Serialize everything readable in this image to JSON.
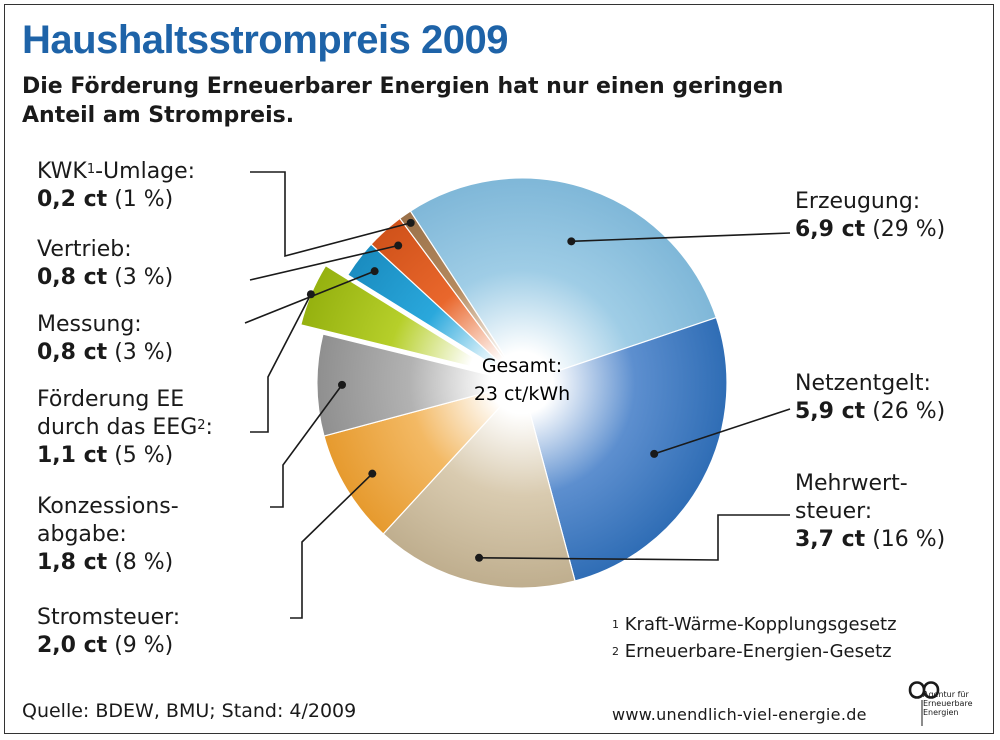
{
  "chart_data": {
    "type": "pie",
    "title": "Haushaltsstrompreis 2009",
    "subtitle": "Die Förderung Erneuerbarer Energien hat nur einen geringen Anteil am Strompreis.",
    "center_label": [
      "Gesamt:",
      "23 ct/kWh"
    ],
    "unit": "ct",
    "total": 23,
    "slices": [
      {
        "key": "erzeugung",
        "name": "Erzeugung:",
        "value_label": "6,9 ct",
        "pct_label": "(29 %)",
        "value": 6.9,
        "pct": 29,
        "color": "#9fcde6",
        "color_dark": "#7fb7d8"
      },
      {
        "key": "netz",
        "name": "Netzentgelt:",
        "value_label": "5,9 ct",
        "pct_label": "(26 %)",
        "value": 5.9,
        "pct": 26,
        "color": "#5d8fcf",
        "color_dark": "#2f6db5"
      },
      {
        "key": "mwst",
        "name": "Mehrwert-steuer:",
        "value_label": "3,7 ct",
        "pct_label": "(16 %)",
        "value": 3.7,
        "pct": 16,
        "color": "#d9cbb0",
        "color_dark": "#bfae8e"
      },
      {
        "key": "stromsteuer",
        "name": "Stromsteuer:",
        "value_label": "2,0 ct",
        "pct_label": "(9 %)",
        "value": 2.0,
        "pct": 9,
        "color": "#f3b964",
        "color_dark": "#e69a2e"
      },
      {
        "key": "konzession",
        "name": "Konzessions-abgabe:",
        "value_label": "1,8 ct",
        "pct_label": "(8 %)",
        "value": 1.8,
        "pct": 8,
        "color": "#b2b2b2",
        "color_dark": "#8f8f8f"
      },
      {
        "key": "eeg",
        "name": "Förderung EE durch das EEG:",
        "value_label": "1,1 ct",
        "pct_label": "(5 %)",
        "value": 1.1,
        "pct": 5,
        "color": "#b6cf2a",
        "color_dark": "#95b10f",
        "exploded": true
      },
      {
        "key": "messung",
        "name": "Messung:",
        "value_label": "0,8 ct",
        "pct_label": "(3 %)",
        "value": 0.8,
        "pct": 3,
        "color": "#2aa8dc",
        "color_dark": "#1a8cc0"
      },
      {
        "key": "vertrieb",
        "name": "Vertrieb:",
        "value_label": "0,8 ct",
        "pct_label": "(3 %)",
        "value": 0.8,
        "pct": 3,
        "color": "#e9672c",
        "color_dark": "#d0521a"
      },
      {
        "key": "kwk",
        "name": "KWK-Umlage:",
        "value_label": "0,2 ct",
        "pct_label": "(1 %)",
        "value": 0.2,
        "pct": 1,
        "color": "#b58a5e",
        "color_dark": "#9a714a"
      }
    ]
  },
  "labels": {
    "kwk": {
      "line1_pre": "KWK",
      "sup": "1",
      "line1_post": "-Umlage:"
    },
    "vertrieb": {
      "line1": "Vertrieb:"
    },
    "messung": {
      "line1": "Messung:"
    },
    "eeg": {
      "line1": "Förderung EE",
      "line2_pre": "durch das EEG",
      "sup": "2",
      "line2_post": ":"
    },
    "konzession": {
      "line1": "Konzessions-",
      "line2": "abgabe:"
    },
    "stromsteuer": {
      "line1": "Stromsteuer:"
    },
    "erzeugung": {
      "line1": "Erzeugung:"
    },
    "netz": {
      "line1": "Netzentgelt:"
    },
    "mwst": {
      "line1": "Mehrwert-",
      "line2": "steuer:"
    }
  },
  "footnotes": [
    {
      "mark": "1",
      "text": "Kraft-Wärme-Kopplungsgesetz"
    },
    {
      "mark": "2",
      "text": "Erneuerbare-Energien-Gesetz"
    }
  ],
  "source": "Quelle: BDEW, BMU; Stand: 4/2009",
  "url": "www.unendlich-viel-energie.de",
  "logo": {
    "icon": "infinity-icon",
    "text": [
      "Agentur für",
      "Erneuerbare",
      "Energien"
    ]
  }
}
